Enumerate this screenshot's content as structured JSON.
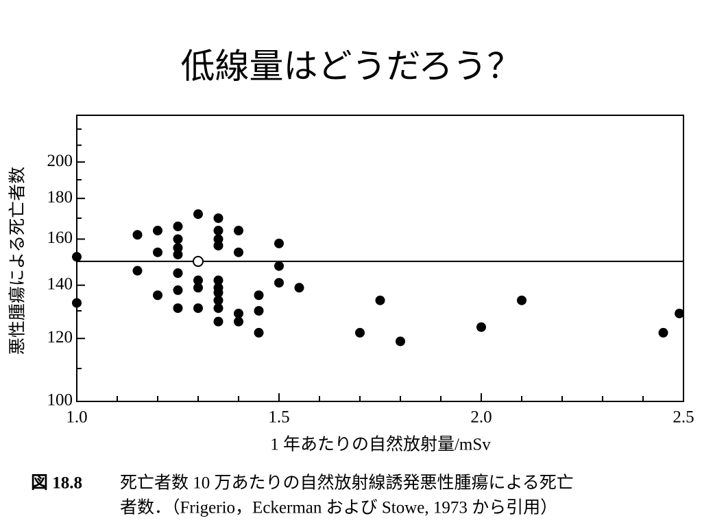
{
  "title": "低線量はどうだろう？",
  "chart_data": {
    "type": "scatter",
    "x_label": "1 年あたりの自然放射量/mSv",
    "y_label": "悪性腫瘍による死亡者数",
    "log_y": true,
    "xlim": [
      1.0,
      2.5
    ],
    "ylim": [
      100,
      229
    ],
    "xticks": [
      {
        "value": 1,
        "label": "1.0"
      },
      {
        "value": 1.5,
        "label": "1.5"
      },
      {
        "value": 2,
        "label": "2.0"
      },
      {
        "value": 2.5,
        "label": "2.5"
      }
    ],
    "x_minor_ticks": [
      1.1,
      1.2,
      1.3,
      1.4,
      1.6,
      1.7,
      1.8,
      1.9,
      2.1,
      2.2,
      2.3,
      2.4
    ],
    "yticks": [
      100,
      120,
      140,
      160,
      180,
      200
    ],
    "y_minor_ticks": [
      110,
      130,
      150,
      170,
      190,
      210,
      220
    ],
    "series": [
      {
        "color": "#000000",
        "x": [
          1.0,
          1.0,
          1.15,
          1.15,
          1.2,
          1.2,
          1.2,
          1.25,
          1.25,
          1.25,
          1.25,
          1.25,
          1.25,
          1.25,
          1.3,
          1.3,
          1.3,
          1.3,
          1.35,
          1.35,
          1.35,
          1.35,
          1.35,
          1.35,
          1.35,
          1.35,
          1.35,
          1.35,
          1.4,
          1.4,
          1.4,
          1.4,
          1.45,
          1.45,
          1.45,
          1.5,
          1.5,
          1.5,
          1.55,
          1.7,
          1.75,
          1.8,
          2.0,
          2.1,
          2.45,
          2.49
        ],
        "values": [
          152,
          133,
          162,
          146,
          164,
          154,
          136,
          166,
          160,
          156,
          153,
          145,
          138,
          131,
          172,
          142,
          139,
          131,
          170,
          164,
          160,
          157,
          142,
          139,
          137,
          134,
          131,
          126,
          164,
          154,
          129,
          126,
          136,
          130,
          122,
          158,
          148,
          141,
          139,
          122,
          134,
          119,
          124,
          134,
          122,
          129
        ]
      }
    ],
    "reference_line": 150,
    "mean_point": {
      "x": 1.3,
      "value": 150
    }
  },
  "caption": {
    "label": "図 18.8",
    "lines": [
      "死亡者数 10 万あたりの自然放射線誘発悪性腫瘍による死亡",
      "者数．（Frigerio，Eckerman および Stowe, 1973 から引用）"
    ]
  }
}
